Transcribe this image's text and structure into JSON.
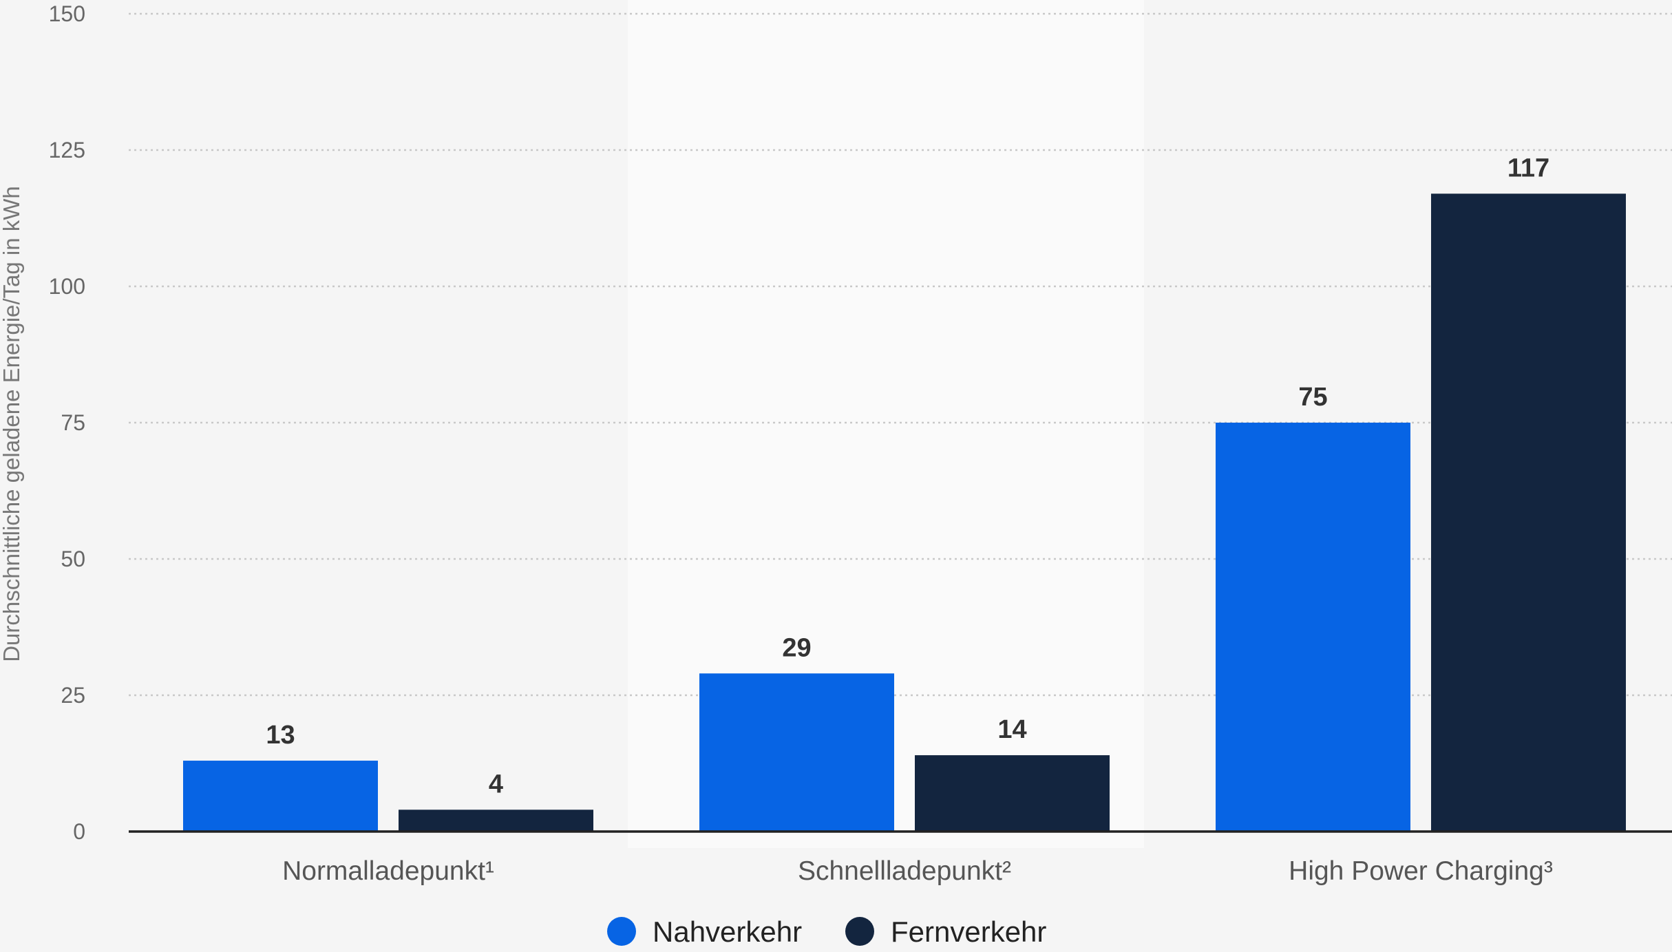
{
  "chart_data": {
    "type": "bar",
    "title": "",
    "xlabel": "",
    "ylabel": "Durchschnittliche geladene Energie/Tag in kWh",
    "ylim": [
      0,
      150
    ],
    "yticks": [
      0,
      25,
      50,
      75,
      100,
      125,
      150
    ],
    "categories": [
      "Normalladepunkt¹",
      "Schnellladepunkt²",
      "High Power Charging³"
    ],
    "series": [
      {
        "name": "Nahverkehr",
        "values": [
          13,
          29,
          75
        ],
        "color": "#0764e4"
      },
      {
        "name": "Fernverkehr",
        "values": [
          4,
          14,
          117
        ],
        "color": "#13253f"
      }
    ],
    "grid": true,
    "legend_position": "bottom-center",
    "data_labels": true
  }
}
